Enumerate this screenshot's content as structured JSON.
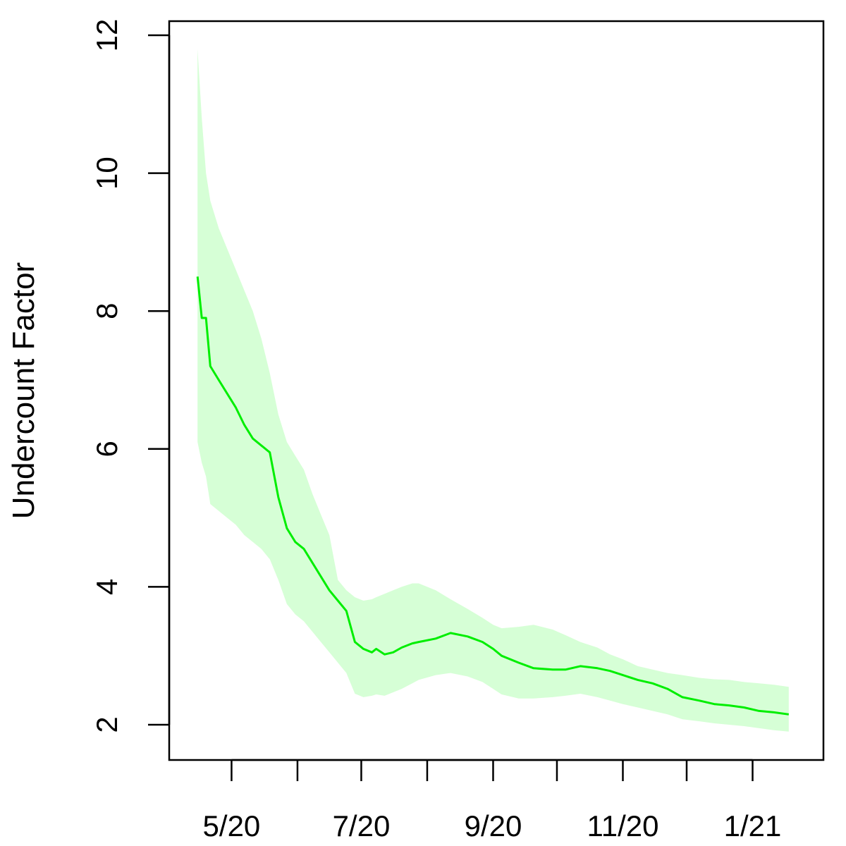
{
  "chart_data": {
    "type": "line",
    "title": "",
    "xlabel": "",
    "ylabel": "Undercount Factor",
    "ylim": [
      2,
      12
    ],
    "yticks": [
      2,
      4,
      6,
      8,
      10,
      12
    ],
    "xaxis": {
      "range": [
        "2020-04-05",
        "2021-01-31"
      ],
      "ticks": [
        {
          "date": "2020-05-01",
          "label": "5/20"
        },
        {
          "date": "2020-06-01",
          "label": ""
        },
        {
          "date": "2020-07-01",
          "label": "7/20"
        },
        {
          "date": "2020-08-01",
          "label": ""
        },
        {
          "date": "2020-09-01",
          "label": "9/20"
        },
        {
          "date": "2020-10-01",
          "label": ""
        },
        {
          "date": "2020-11-01",
          "label": "11/20"
        },
        {
          "date": "2020-12-01",
          "label": ""
        },
        {
          "date": "2021-01-01",
          "label": "1/21"
        }
      ]
    },
    "grid": false,
    "legend": "none",
    "colors": {
      "line": "#00ee00",
      "band": "#d6ffd6",
      "axes": "#000000"
    },
    "series": [
      {
        "x": [
          "2020-04-15",
          "2020-04-17",
          "2020-04-19",
          "2020-04-21",
          "2020-04-25",
          "2020-04-29",
          "2020-05-03",
          "2020-05-07",
          "2020-05-11",
          "2020-05-15",
          "2020-05-19",
          "2020-05-23",
          "2020-05-27",
          "2020-05-31",
          "2020-06-04",
          "2020-06-08",
          "2020-06-12",
          "2020-06-16",
          "2020-06-20",
          "2020-06-24",
          "2020-06-28",
          "2020-07-02",
          "2020-07-06",
          "2020-07-08",
          "2020-07-12",
          "2020-07-16",
          "2020-07-20",
          "2020-07-25",
          "2020-07-28",
          "2020-08-05",
          "2020-08-12",
          "2020-08-20",
          "2020-08-27",
          "2020-09-01",
          "2020-09-05",
          "2020-09-13",
          "2020-09-20",
          "2020-09-29",
          "2020-10-05",
          "2020-10-12",
          "2020-10-20",
          "2020-10-26",
          "2020-11-01",
          "2020-11-08",
          "2020-11-15",
          "2020-11-22",
          "2020-11-29",
          "2020-12-07",
          "2020-12-14",
          "2020-12-21",
          "2020-12-28",
          "2021-01-04",
          "2021-01-11",
          "2021-01-18"
        ],
        "y": [
          8.5,
          7.9,
          7.9,
          7.2,
          7.0,
          6.8,
          6.6,
          6.35,
          6.15,
          6.05,
          5.95,
          5.3,
          4.85,
          4.65,
          4.55,
          4.35,
          4.15,
          3.95,
          3.8,
          3.65,
          3.2,
          3.1,
          3.05,
          3.1,
          3.02,
          3.05,
          3.12,
          3.18,
          3.2,
          3.25,
          3.33,
          3.28,
          3.2,
          3.1,
          3.0,
          2.9,
          2.82,
          2.8,
          2.8,
          2.85,
          2.82,
          2.78,
          2.72,
          2.65,
          2.6,
          2.52,
          2.4,
          2.35,
          2.3,
          2.28,
          2.25,
          2.2,
          2.18,
          2.15
        ],
        "lower": [
          6.1,
          5.8,
          5.6,
          5.2,
          5.1,
          5.0,
          4.9,
          4.75,
          4.65,
          4.55,
          4.4,
          4.1,
          3.75,
          3.6,
          3.5,
          3.35,
          3.2,
          3.05,
          2.9,
          2.75,
          2.45,
          2.4,
          2.42,
          2.44,
          2.42,
          2.47,
          2.52,
          2.6,
          2.65,
          2.72,
          2.75,
          2.7,
          2.62,
          2.52,
          2.44,
          2.38,
          2.38,
          2.4,
          2.42,
          2.45,
          2.4,
          2.35,
          2.3,
          2.25,
          2.2,
          2.15,
          2.08,
          2.05,
          2.02,
          2.0,
          1.98,
          1.95,
          1.92,
          1.9
        ],
        "upper": [
          11.8,
          10.8,
          10.0,
          9.6,
          9.2,
          8.9,
          8.6,
          8.3,
          8.0,
          7.6,
          7.1,
          6.5,
          6.1,
          5.9,
          5.7,
          5.35,
          5.05,
          4.75,
          4.1,
          3.95,
          3.85,
          3.8,
          3.82,
          3.85,
          3.9,
          3.95,
          4.0,
          4.05,
          4.05,
          3.95,
          3.82,
          3.68,
          3.55,
          3.45,
          3.4,
          3.42,
          3.45,
          3.38,
          3.3,
          3.2,
          3.12,
          3.02,
          2.95,
          2.85,
          2.8,
          2.75,
          2.72,
          2.68,
          2.66,
          2.65,
          2.62,
          2.6,
          2.58,
          2.55
        ]
      }
    ]
  }
}
